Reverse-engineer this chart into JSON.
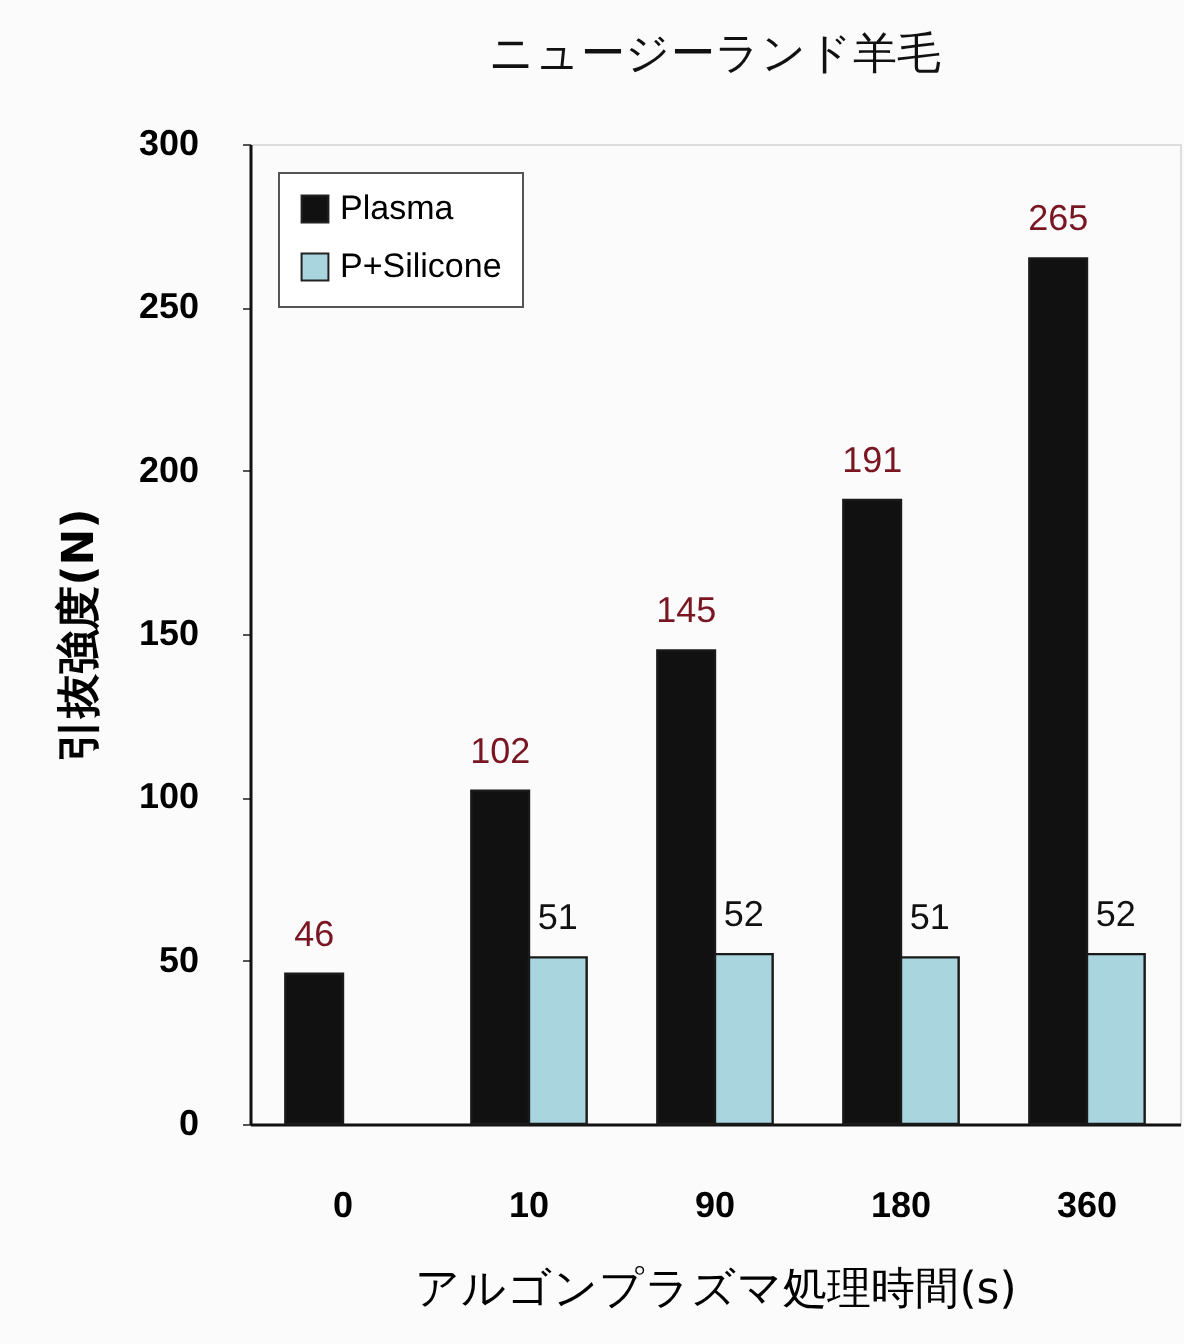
{
  "chart_data": {
    "type": "bar",
    "title": "ニュージーランド羊毛",
    "xlabel": "アルゴンプラズマ処理時間(s)",
    "ylabel": "引抜強度(N)",
    "categories": [
      "0",
      "10",
      "90",
      "180",
      "360"
    ],
    "series": [
      {
        "name": "Plasma",
        "color": "#111111",
        "values": [
          46,
          102,
          145,
          191,
          265
        ]
      },
      {
        "name": "P+Silicone",
        "color": "#a9d5df",
        "values": [
          null,
          51,
          52,
          51,
          52
        ]
      }
    ],
    "ylim": [
      0,
      300
    ],
    "yticks": [
      0,
      50,
      100,
      150,
      200,
      250,
      300
    ],
    "data_labels": true,
    "legend": "top left",
    "grid": false
  }
}
